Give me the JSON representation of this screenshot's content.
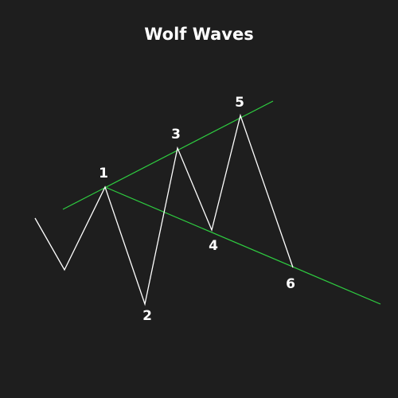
{
  "title": "Wolf Waves",
  "colors": {
    "background": "#1e1e1e",
    "price_line": "#ffffff",
    "trend_lines": "#2ecc40",
    "text": "#ffffff"
  },
  "points": {
    "p1": "1",
    "p2": "2",
    "p3": "3",
    "p4": "4",
    "p5": "5",
    "p6": "6"
  }
}
